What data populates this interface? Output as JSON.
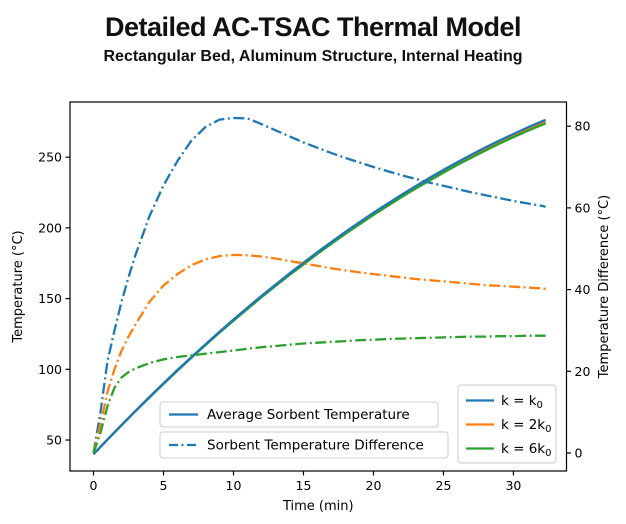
{
  "chart_data": {
    "type": "line",
    "title": "Detailed AC-TSAC Thermal Model",
    "subtitle": "Rectangular Bed, Aluminum Structure, Internal Heating",
    "xlabel": "Time (min)",
    "ylabel_left": "Temperature (°C)",
    "ylabel_right": "Temperature Difference (°C)",
    "xlim": [
      -1.68,
      33.79
    ],
    "ylim_left": [
      28.1,
      289.0
    ],
    "ylim_right": [
      -4.41,
      85.92
    ],
    "xticks": [
      0,
      5,
      10,
      15,
      20,
      25,
      30
    ],
    "yticks_left": [
      50,
      100,
      150,
      200,
      250
    ],
    "yticks_right": [
      0,
      20,
      40,
      60,
      80
    ],
    "grid": false,
    "colors": {
      "k0": "#1f77b4",
      "2k0": "#ff7f0e",
      "6k0": "#2ca02c"
    },
    "legend_style": {
      "entries": [
        {
          "label": "Average Sorbent Temperature",
          "linestyle": "solid",
          "color": "#1f77b4"
        },
        {
          "label": "Sorbent Temperature Difference",
          "linestyle": "dashdot",
          "color": "#1f77b4"
        }
      ]
    },
    "legend_colors": {
      "entries": [
        {
          "label": "k = k₀",
          "color": "#1f77b4"
        },
        {
          "label": "k = 2k₀",
          "color": "#ff7f0e"
        },
        {
          "label": "k = 6k₀",
          "color": "#2ca02c"
        }
      ]
    },
    "series": [
      {
        "name": "avg-sorbent-temp-k0",
        "axis": "left",
        "linestyle": "solid",
        "color": "#ff7f0e",
        "note": "k = 2k0 average sorbent temperature (hidden inside bundle)",
        "x": [
          0,
          1,
          2,
          3,
          4,
          5,
          6,
          7,
          8,
          9,
          10,
          11,
          12,
          13,
          14,
          15,
          16,
          17,
          18,
          19,
          20,
          21,
          22,
          23,
          24,
          25,
          26,
          27,
          28,
          29,
          30,
          31,
          32,
          32.3
        ],
        "y": [
          40,
          50.4,
          60.5,
          70.5,
          80.3,
          89.9,
          99.3,
          108.4,
          117.4,
          126.3,
          134.8,
          143.2,
          151.5,
          159.4,
          167.3,
          174.8,
          182.3,
          189.5,
          196.5,
          203.3,
          210,
          216.3,
          222.6,
          228.6,
          234.4,
          240.1,
          245.5,
          250.8,
          255.9,
          260.7,
          265.3,
          269.7,
          274,
          275.2
        ]
      },
      {
        "name": "avg-sorbent-temp-6k0",
        "axis": "left",
        "linestyle": "solid",
        "color": "#2ca02c",
        "note": "k = 6k0 average sorbent temperature",
        "x": [
          0,
          1,
          2,
          3,
          4,
          5,
          6,
          7,
          8,
          9,
          10,
          11,
          12,
          13,
          14,
          15,
          16,
          17,
          18,
          19,
          20,
          21,
          22,
          23,
          24,
          25,
          26,
          27,
          28,
          29,
          30,
          31,
          32,
          32.3
        ],
        "y": [
          40,
          50.3,
          60.4,
          70.4,
          80.1,
          89.7,
          99,
          108.2,
          117.1,
          125.9,
          134.4,
          142.7,
          150.9,
          158.9,
          166.7,
          174.2,
          181.7,
          188.8,
          195.8,
          202.5,
          209.2,
          215.5,
          221.7,
          227.7,
          233.4,
          239.1,
          244.5,
          249.7,
          254.7,
          259.6,
          264.1,
          268.5,
          272.7,
          273.9
        ]
      },
      {
        "name": "avg-sorbent-temp-1k0",
        "axis": "left",
        "linestyle": "solid",
        "color": "#1f77b4",
        "note": "k = k0 average sorbent temperature",
        "x": [
          0,
          1,
          2,
          3,
          4,
          5,
          6,
          7,
          8,
          9,
          10,
          11,
          12,
          13,
          14,
          15,
          16,
          17,
          18,
          19,
          20,
          21,
          22,
          23,
          24,
          25,
          26,
          27,
          28,
          29,
          30,
          31,
          32,
          32.3
        ],
        "y": [
          40,
          50.4,
          60.6,
          70.6,
          80.4,
          90.1,
          99.5,
          108.7,
          117.7,
          126.6,
          135.2,
          143.6,
          151.9,
          159.9,
          167.8,
          175.4,
          182.9,
          190.1,
          197.2,
          204,
          210.7,
          217.1,
          223.4,
          229.5,
          235.3,
          241,
          246.5,
          251.8,
          256.9,
          261.8,
          266.4,
          270.9,
          275.2,
          276.4
        ]
      },
      {
        "name": "sorbent-temp-diff-1k0",
        "axis": "right",
        "linestyle": "dashdot",
        "color": "#1f77b4",
        "note": "k = k0 sorbent temperature difference",
        "x": [
          0,
          0.5,
          1,
          1.5,
          2,
          2.5,
          3,
          4,
          5,
          6,
          7,
          8,
          9,
          10,
          11,
          12,
          13,
          14,
          15,
          16,
          17,
          18,
          19,
          20,
          21,
          22,
          23,
          24,
          25,
          26,
          27,
          28,
          29,
          30,
          31,
          32,
          32.3
        ],
        "y": [
          0,
          10,
          22.5,
          30,
          37,
          43,
          48.5,
          58,
          65.5,
          71.5,
          76.5,
          79.8,
          81.6,
          82,
          81.9,
          80.5,
          79,
          77.5,
          76,
          74.7,
          73.4,
          72.2,
          71.1,
          70,
          69,
          68,
          67.1,
          66.2,
          65.4,
          64.6,
          63.8,
          63.1,
          62.4,
          61.7,
          61.1,
          60.5,
          60.3
        ]
      },
      {
        "name": "sorbent-temp-diff-2k0",
        "axis": "right",
        "linestyle": "dashdot",
        "color": "#ff7f0e",
        "note": "k = 2k0 sorbent temperature difference",
        "x": [
          0,
          0.5,
          1,
          1.5,
          2,
          2.5,
          3,
          4,
          5,
          6,
          7,
          8,
          9,
          10,
          11,
          12,
          13,
          14,
          15,
          16,
          17,
          18,
          19,
          20,
          21,
          22,
          23,
          24,
          25,
          26,
          27,
          28,
          29,
          30,
          31,
          32,
          32.3
        ],
        "y": [
          0,
          7,
          15,
          20.5,
          25,
          28.5,
          31.5,
          37,
          41,
          43.8,
          46,
          47.4,
          48.2,
          48.5,
          48.4,
          48.1,
          47.6,
          47,
          46.4,
          45.8,
          45.2,
          44.7,
          44.2,
          43.8,
          43.4,
          43,
          42.6,
          42.3,
          42,
          41.7,
          41.4,
          41.1,
          40.9,
          40.7,
          40.5,
          40.3,
          40.2
        ]
      },
      {
        "name": "sorbent-temp-diff-6k0",
        "axis": "right",
        "linestyle": "dashdot",
        "color": "#2ca02c",
        "note": "k = 6k0 sorbent temperature difference",
        "x": [
          0,
          0.5,
          1,
          1.5,
          2,
          2.5,
          3,
          4,
          5,
          6,
          7,
          8,
          9,
          10,
          11,
          12,
          13,
          14,
          15,
          16,
          17,
          18,
          19,
          20,
          21,
          22,
          23,
          24,
          25,
          26,
          27,
          28,
          29,
          30,
          31,
          32,
          32.3
        ],
        "y": [
          0,
          5,
          11.5,
          16,
          18.5,
          19.8,
          20.7,
          22,
          22.9,
          23.5,
          23.9,
          24.3,
          24.7,
          25.1,
          25.5,
          25.9,
          26.2,
          26.5,
          26.8,
          27,
          27.2,
          27.4,
          27.6,
          27.7,
          27.9,
          28,
          28.1,
          28.2,
          28.3,
          28.4,
          28.5,
          28.5,
          28.6,
          28.6,
          28.7,
          28.7,
          28.7
        ]
      }
    ]
  }
}
